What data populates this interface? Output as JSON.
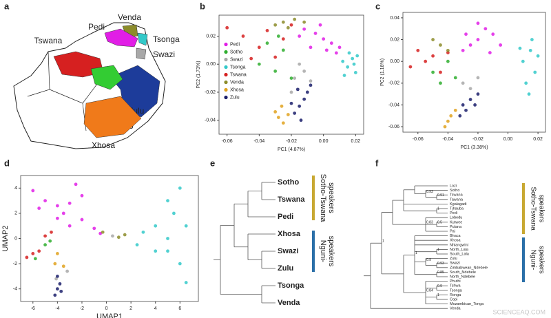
{
  "map": {
    "label": "a",
    "regions": [
      {
        "name": "Venda",
        "color": "#8c8c2a"
      },
      {
        "name": "Pedi",
        "color": "#e11ee6"
      },
      {
        "name": "Tsonga",
        "color": "#33c9c9"
      },
      {
        "name": "Tswana",
        "color": "#d62020"
      },
      {
        "name": "Swazi",
        "color": "#a8a8a8"
      },
      {
        "name": "Zulu",
        "color": "#1d3c9a"
      },
      {
        "name": "Sotho",
        "color": "#33cc33"
      },
      {
        "name": "Xhosa",
        "color": "#f07a1a"
      }
    ]
  },
  "chart_data": [
    {
      "type": "scatter",
      "label": "b",
      "xlabel": "PC1 (4.87%)",
      "ylabel": "PC2 (1.73%)",
      "xlim": [
        -0.065,
        0.025
      ],
      "ylim": [
        -0.05,
        0.035
      ],
      "xticks": [
        -0.06,
        -0.04,
        -0.02,
        {
          "value": 0,
          "label": "0.00"
        },
        0.02
      ],
      "yticks": [
        -0.04,
        -0.02,
        {
          "value": 0,
          "label": "0.00"
        },
        0.02
      ],
      "legend": "center left",
      "series": [
        {
          "name": "Pedi",
          "color": "#e11ee6",
          "x": [
            -0.012,
            -0.005,
            0.0,
            0.005,
            -0.008,
            0.002,
            -0.015,
            0.008,
            -0.002,
            0.01
          ],
          "y": [
            0.025,
            0.022,
            0.018,
            0.015,
            0.012,
            0.01,
            0.02,
            0.008,
            0.028,
            0.012
          ]
        },
        {
          "name": "Sotho",
          "color": "#2fae2f",
          "x": [
            -0.04,
            -0.03,
            -0.025,
            -0.035,
            -0.02,
            -0.028
          ],
          "y": [
            0.0,
            -0.005,
            0.01,
            0.015,
            -0.01,
            0.02
          ]
        },
        {
          "name": "Swazi",
          "color": "#a8a8a8",
          "x": [
            -0.018,
            -0.012,
            -0.02,
            -0.008,
            -0.015
          ],
          "y": [
            -0.01,
            -0.005,
            -0.02,
            -0.012,
            0.0
          ]
        },
        {
          "name": "Tsonga",
          "color": "#33c9c9",
          "x": [
            0.012,
            0.015,
            0.018,
            0.02,
            0.016,
            0.013,
            0.019,
            0.021
          ],
          "y": [
            0.002,
            -0.002,
            0.004,
            -0.006,
            0.008,
            -0.008,
            0.0,
            0.006
          ]
        },
        {
          "name": "Tswana",
          "color": "#d62020",
          "x": [
            -0.06,
            -0.05,
            -0.04,
            -0.035,
            -0.03,
            -0.025,
            -0.045,
            -0.02
          ],
          "y": [
            0.026,
            0.02,
            0.012,
            0.024,
            0.005,
            0.018,
            0.004,
            0.028
          ]
        },
        {
          "name": "Venda",
          "color": "#8c8c2a",
          "x": [
            -0.025,
            -0.018,
            -0.03,
            -0.012,
            -0.022
          ],
          "y": [
            0.03,
            0.032,
            0.028,
            0.03,
            0.026
          ]
        },
        {
          "name": "Xhosa",
          "color": "#e0a21e",
          "x": [
            -0.028,
            -0.025,
            -0.03,
            -0.022,
            -0.026
          ],
          "y": [
            -0.038,
            -0.042,
            -0.034,
            -0.036,
            -0.03
          ]
        },
        {
          "name": "Zulu",
          "color": "#1b1f6b",
          "x": [
            -0.015,
            -0.012,
            -0.018,
            -0.01,
            -0.014,
            -0.02,
            -0.008,
            -0.016
          ],
          "y": [
            -0.03,
            -0.025,
            -0.035,
            -0.02,
            -0.04,
            -0.028,
            -0.015,
            -0.018
          ]
        }
      ]
    },
    {
      "type": "scatter",
      "label": "c",
      "xlabel": "PC1 (3.38%)",
      "ylabel": "PC2 (1.18%)",
      "xlim": [
        -0.07,
        0.025
      ],
      "ylim": [
        -0.065,
        0.045
      ],
      "xticks": [
        -0.06,
        -0.04,
        -0.02,
        {
          "value": 0,
          "label": "0.00"
        },
        0.02
      ],
      "yticks": [
        -0.06,
        -0.04,
        -0.02,
        {
          "value": 0,
          "label": "0.00"
        },
        0.02,
        0.04
      ],
      "series": [
        {
          "name": "Pedi",
          "color": "#e11ee6",
          "x": [
            -0.02,
            -0.015,
            -0.025,
            -0.01,
            -0.03,
            -0.02,
            -0.005,
            -0.012,
            -0.028
          ],
          "y": [
            0.02,
            0.03,
            0.015,
            0.025,
            0.01,
            0.035,
            0.015,
            0.008,
            0.025
          ]
        },
        {
          "name": "Sotho",
          "color": "#2fae2f",
          "x": [
            -0.05,
            -0.045,
            -0.04,
            -0.035
          ],
          "y": [
            -0.01,
            -0.02,
            0.0,
            -0.015
          ]
        },
        {
          "name": "Swazi",
          "color": "#a8a8a8",
          "x": [
            -0.03,
            -0.025,
            -0.02
          ],
          "y": [
            -0.02,
            -0.025,
            -0.015
          ]
        },
        {
          "name": "Tsonga",
          "color": "#33c9c9",
          "x": [
            0.01,
            0.015,
            0.018,
            0.012,
            0.016,
            0.02,
            0.014,
            0.008
          ],
          "y": [
            0.0,
            0.01,
            -0.01,
            -0.02,
            0.02,
            0.005,
            -0.03,
            0.012
          ]
        },
        {
          "name": "Tswana",
          "color": "#d62020",
          "x": [
            -0.06,
            -0.05,
            -0.055,
            -0.045,
            -0.04,
            -0.065
          ],
          "y": [
            0.01,
            0.005,
            0.0,
            -0.01,
            0.008,
            -0.005
          ]
        },
        {
          "name": "Venda",
          "color": "#8c8c2a",
          "x": [
            -0.045,
            -0.05,
            -0.04
          ],
          "y": [
            0.015,
            0.02,
            0.01
          ]
        },
        {
          "name": "Xhosa",
          "color": "#e0a21e",
          "x": [
            -0.04,
            -0.038,
            -0.042,
            -0.035
          ],
          "y": [
            -0.055,
            -0.05,
            -0.06,
            -0.045
          ]
        },
        {
          "name": "Zulu",
          "color": "#1b1f6b",
          "x": [
            -0.03,
            -0.025,
            -0.028,
            -0.02,
            -0.032,
            -0.022
          ],
          "y": [
            -0.04,
            -0.035,
            -0.045,
            -0.03,
            -0.05,
            -0.04
          ]
        }
      ]
    },
    {
      "type": "scatter",
      "label": "d",
      "xlabel": "UMAP1",
      "ylabel": "UMAP2",
      "xlim": [
        -7,
        7.5
      ],
      "ylim": [
        -5,
        5
      ],
      "xticks": [
        -6,
        -4,
        -2,
        0,
        2,
        4,
        6
      ],
      "yticks": [
        -4,
        -2,
        0,
        2,
        4
      ],
      "series": [
        {
          "name": "Pedi",
          "color": "#e11ee6",
          "x": [
            -6,
            -5,
            -4,
            -3,
            -2,
            -2.5,
            -3.5,
            -3,
            -4,
            -1,
            -0.5,
            -5.5,
            -2
          ],
          "y": [
            3.8,
            3,
            2.6,
            2.8,
            3.4,
            4.3,
            2,
            1,
            1.6,
            0.8,
            0.4,
            2.4,
            1.5
          ]
        },
        {
          "name": "Sotho",
          "color": "#2fae2f",
          "x": [
            -5,
            -4.6,
            -5.8
          ],
          "y": [
            -0.5,
            -0.2,
            -1.6
          ]
        },
        {
          "name": "Swazi",
          "color": "#a8a8a8",
          "x": [
            -4.1,
            -3.2,
            0.5
          ],
          "y": [
            -3.2,
            -2.6,
            0.2
          ]
        },
        {
          "name": "Tsonga",
          "color": "#33c9c9",
          "x": [
            3,
            4,
            5,
            6,
            5.5,
            6.5,
            5,
            6,
            6.5,
            4,
            2.5,
            5
          ],
          "y": [
            0.5,
            1,
            3,
            4,
            2,
            1,
            -1,
            -2,
            -3.5,
            -1,
            -0.5,
            0
          ]
        },
        {
          "name": "Tswana",
          "color": "#d62020",
          "x": [
            -6.5,
            -6,
            -5.5,
            -5,
            -4.5
          ],
          "y": [
            -1.5,
            -1.2,
            -1,
            0.2,
            0.5
          ]
        },
        {
          "name": "Venda",
          "color": "#8c8c2a",
          "x": [
            1.5,
            1,
            -0.3
          ],
          "y": [
            0.3,
            0.1,
            0.5
          ]
        },
        {
          "name": "Xhosa",
          "color": "#e0a21e",
          "x": [
            -4.2,
            -4,
            -3.5
          ],
          "y": [
            -2,
            -1.2,
            -2.2
          ]
        },
        {
          "name": "Zulu",
          "color": "#1b1f6b",
          "x": [
            -4,
            -4.2,
            -3.8,
            -4,
            -3.7
          ],
          "y": [
            -4,
            -4.5,
            -3.6,
            -3,
            -4.2
          ]
        }
      ]
    }
  ],
  "cladogram": {
    "label": "e",
    "root": {
      "children": [
        {
          "children": [
            {
              "children": [
                {
                  "children": [
                    {
                      "name": "Sotho",
                      "color": "#2fae2f"
                    },
                    {
                      "name": "Tswana",
                      "color": "#d62020"
                    }
                  ]
                },
                {
                  "name": "Pedi",
                  "color": "#e11ee6"
                }
              ]
            },
            {
              "children": [
                {
                  "name": "Xhosa",
                  "color": "#e0a21e"
                },
                {
                  "children": [
                    {
                      "name": "Swazi",
                      "color": "#a8a8a8"
                    },
                    {
                      "name": "Zulu",
                      "color": "#1d3c9a"
                    }
                  ]
                }
              ]
            }
          ]
        },
        {
          "children": [
            {
              "name": "Tsonga",
              "color": "#33c9c9"
            },
            {
              "name": "Venda",
              "color": "#6b7a2a"
            }
          ]
        }
      ]
    },
    "groups": [
      {
        "lines": [
          "Sotho-Tswana",
          "speakers"
        ],
        "color": "#c8a832"
      },
      {
        "lines": [
          "Nguni-",
          "speakers"
        ],
        "color": "#2a6fa8"
      }
    ]
  },
  "phylogeny": {
    "label": "f",
    "root": {
      "children": [
        {
          "support": "1",
          "children": [
            {
              "children": [
                {
                  "children": [
                    {
                      "children": [
                        {
                          "name": "Lozi"
                        },
                        {
                          "support": "0.93",
                          "children": [
                            {
                              "name": "Sotho",
                              "color": "#2fae2f"
                            },
                            {
                              "support": "0.91",
                              "children": [
                                {
                                  "name": "Tswana",
                                  "color": "#d62020"
                                },
                                {
                                  "name": "Tawana"
                                }
                              ]
                            }
                          ]
                        }
                      ]
                    },
                    {
                      "name": "Kgalagadi"
                    },
                    {
                      "support": "1",
                      "children": [
                        {
                          "name": "Tjhauba"
                        },
                        {
                          "name": "Pedi",
                          "color": "#e11ee6"
                        }
                      ]
                    }
                  ]
                },
                {
                  "support": "0.83",
                  "children": [
                    {
                      "name": "Lobedu"
                    },
                    {
                      "support": "0.5",
                      "children": [
                        {
                          "name": "Kutwee"
                        },
                        {
                          "name": "Pulana"
                        }
                      ]
                    },
                    {
                      "name": "Pai"
                    }
                  ]
                }
              ]
            },
            {
              "children": [
                {
                  "support": "1",
                  "children": [
                    {
                      "name": "Bhaca"
                    },
                    {
                      "name": "Xhosa",
                      "color": "#e0a21e"
                    },
                    {
                      "name": "Nhlangwini"
                    },
                    {
                      "support": "1",
                      "children": [
                        {
                          "name": "North_Lala"
                        },
                        {
                          "name": "South_Lala"
                        }
                      ]
                    },
                    {
                      "support": "0.9",
                      "children": [
                        {
                          "name": "Zulu",
                          "color": "#1d3c9a"
                        },
                        {
                          "support": "0.93",
                          "children": [
                            {
                              "name": "Swazi",
                              "color": "#a8a8a8"
                            },
                            {
                              "name": "Zimbabwean_Ndebele"
                            }
                          ]
                        }
                      ]
                    },
                    {
                      "support": "0.85",
                      "children": [
                        {
                          "name": "South_Ndebele"
                        },
                        {
                          "name": "North_Ndebele"
                        }
                      ]
                    }
                  ]
                },
                {
                  "support": "0.84",
                  "children": [
                    {
                      "name": "Phuthi"
                    },
                    {
                      "support": "0.9",
                      "children": [
                        {
                          "name": "Tshwa"
                        },
                        {
                          "name": "Tsonga",
                          "color": "#33c9c9"
                        }
                      ]
                    },
                    {
                      "support": "1",
                      "children": [
                        {
                          "name": "Ronga"
                        },
                        {
                          "name": "Copi"
                        }
                      ]
                    },
                    {
                      "name": "Mozambican_Tonga"
                    }
                  ]
                }
              ]
            }
          ]
        },
        {
          "name": "Venda",
          "color": "#8c8c2a"
        }
      ]
    },
    "groups": [
      {
        "lines": [
          "Sotho-Tswana",
          "speakers"
        ],
        "color": "#c8a832"
      },
      {
        "lines": [
          "Nguni-",
          "speakers"
        ],
        "color": "#2a6fa8"
      }
    ]
  },
  "watermark": "SCIENCEAQ.COM"
}
